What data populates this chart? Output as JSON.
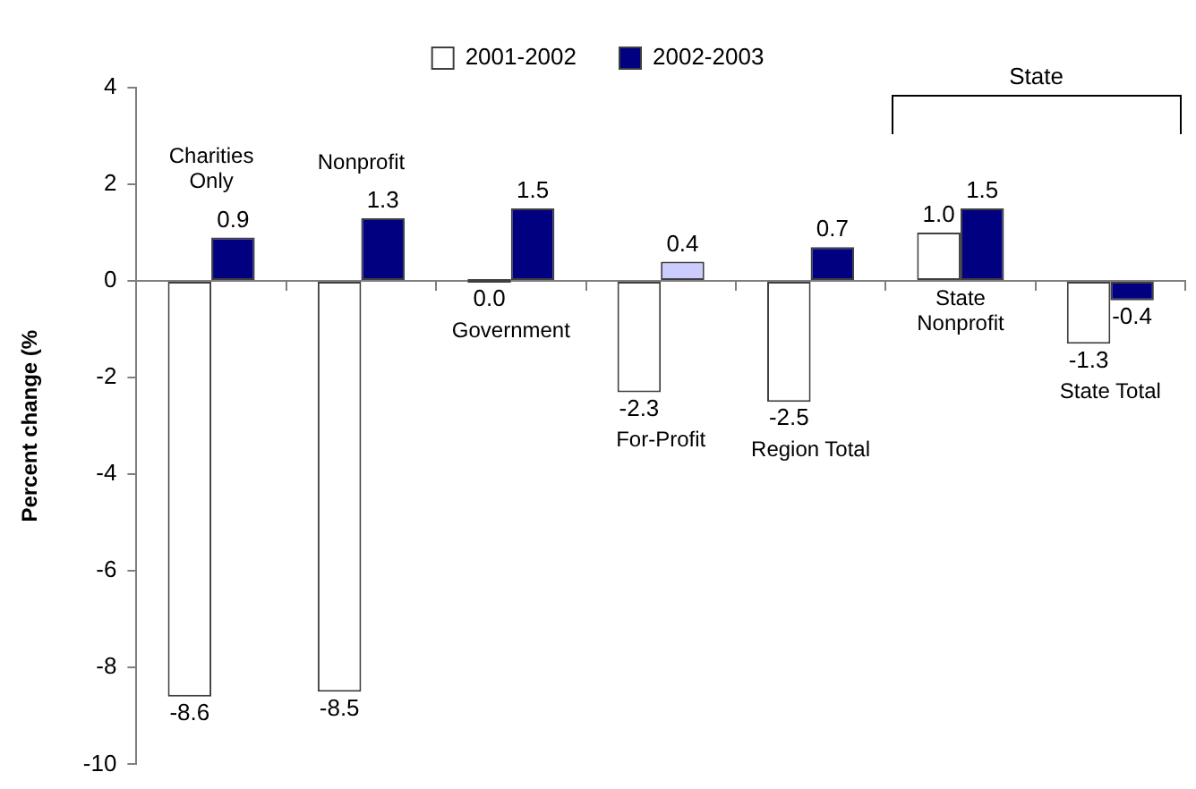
{
  "chart_data": {
    "type": "bar",
    "categories": [
      "Charities Only",
      "Nonprofit",
      "Government",
      "For-Profit",
      "Region Total",
      "State Nonprofit",
      "State Total"
    ],
    "series": [
      {
        "name": "2001-2002",
        "color": "#ffffff",
        "colors": [
          "#ffffff",
          "#ffffff",
          "#3f3f3f",
          "#ffffff",
          "#ffffff",
          "#ffffff",
          "#ffffff"
        ],
        "values": [
          -8.6,
          -8.5,
          0.0,
          -2.3,
          -2.5,
          1.0,
          -1.3
        ],
        "value_labels": [
          "-8.6",
          "-8.5",
          "0.0",
          "-2.3",
          "-2.5",
          "1.0",
          "-1.3"
        ]
      },
      {
        "name": "2002-2003",
        "color": "#000080",
        "colors": [
          "#000080",
          "#000080",
          "#000080",
          "#ccccff",
          "#000080",
          "#000080",
          "#000080"
        ],
        "values": [
          0.9,
          1.3,
          1.5,
          0.4,
          0.7,
          1.5,
          -0.4
        ],
        "value_labels": [
          "0.9",
          "1.3",
          "1.5",
          "0.4",
          "0.7",
          "1.5",
          "-0.4"
        ]
      }
    ],
    "ylabel": "Percent change (%",
    "ylim": [
      -10,
      4
    ],
    "yticks": [
      -10,
      -8,
      -6,
      -4,
      -2,
      0,
      2,
      4
    ],
    "legend": "top",
    "annotations": [
      "State"
    ]
  }
}
